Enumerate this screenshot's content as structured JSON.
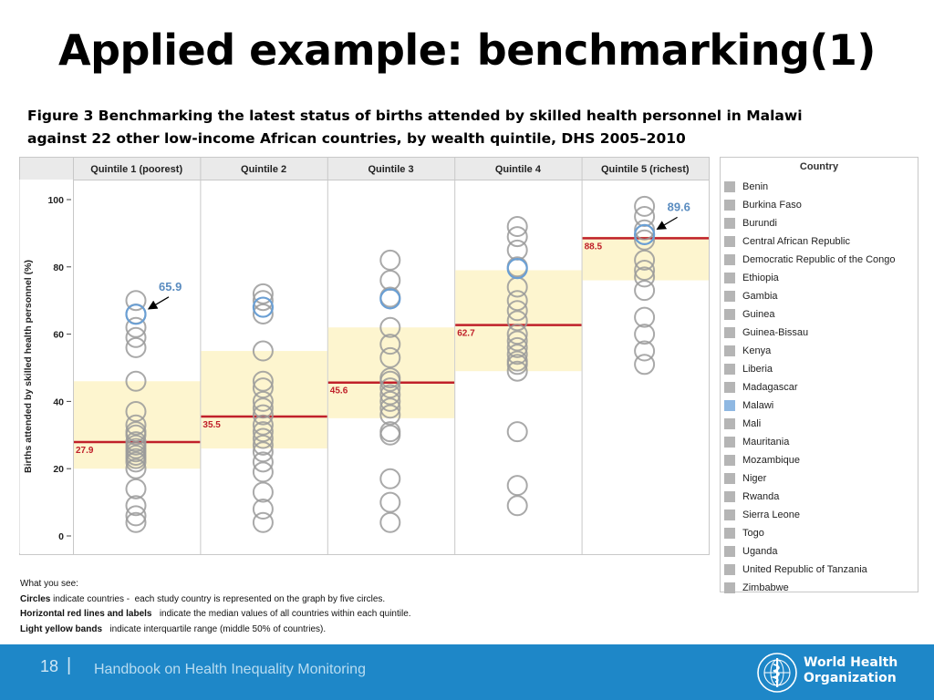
{
  "slide": {
    "title": "Applied example: benchmarking(1)",
    "caption_line1": "Figure 3 Benchmarking the latest status of births attended by skilled health personnel in Malawi",
    "caption_line2": "against 22 other low-income African countries, by wealth quintile, DHS 2005–2010"
  },
  "chart_data": {
    "type": "scatter",
    "ylabel": "Births attended by skilled health personnel (%)",
    "ylim": [
      0,
      100
    ],
    "yticks": [
      0,
      20,
      40,
      60,
      80,
      100
    ],
    "grid": false,
    "legend_position": "right",
    "highlight": "Malawi",
    "colors": {
      "circle": "#9a9a9a",
      "highlight": "#6a9fd4",
      "median": "#c0202a",
      "band": "#fdf5cf",
      "header_bg": "#eaeaea"
    },
    "panels": [
      {
        "name": "Quintile 1 (poorest)",
        "median": 27.9,
        "iqr": [
          20,
          46
        ],
        "malawi": 65.9,
        "values": [
          70,
          66,
          62,
          59,
          56,
          46,
          37,
          33,
          31,
          30,
          28,
          27,
          26,
          25,
          24,
          23,
          22,
          20,
          14,
          9,
          6,
          4
        ]
      },
      {
        "name": "Quintile 2",
        "median": 35.5,
        "iqr": [
          26,
          55
        ],
        "malawi": 68,
        "values": [
          72,
          70,
          66,
          55,
          46,
          44,
          40,
          38,
          36,
          33,
          31,
          29,
          27,
          25,
          22,
          19,
          13,
          8,
          4
        ]
      },
      {
        "name": "Quintile 3",
        "median": 45.6,
        "iqr": [
          35,
          62
        ],
        "malawi": 70.5,
        "values": [
          82,
          76,
          71,
          62,
          57,
          53,
          47,
          46,
          44,
          42,
          40,
          38,
          36,
          31,
          30,
          17,
          10,
          4
        ]
      },
      {
        "name": "Quintile 4",
        "median": 62.7,
        "iqr": [
          49,
          79
        ],
        "malawi": 79.5,
        "values": [
          92,
          89,
          85,
          80,
          74,
          70,
          67,
          64,
          60,
          58,
          56,
          54,
          52,
          51,
          49,
          31,
          15,
          9
        ]
      },
      {
        "name": "Quintile 5 (richest)",
        "median": 88.5,
        "iqr": [
          76,
          89
        ],
        "malawi": 89.6,
        "values": [
          98,
          95,
          91,
          88,
          82,
          79,
          77,
          73,
          65,
          60,
          55,
          51
        ]
      }
    ],
    "annotations": [
      {
        "panel": 0,
        "text": "65.9"
      },
      {
        "panel": 4,
        "text": "89.6"
      }
    ]
  },
  "legend": {
    "title": "Country",
    "items": [
      "Benin",
      "Burkina Faso",
      "Burundi",
      "Central African Republic",
      "Democratic Republic of the Congo",
      "Ethiopia",
      "Gambia",
      "Guinea",
      "Guinea-Bissau",
      "Kenya",
      "Liberia",
      "Madagascar",
      "Malawi",
      "Mali",
      "Mauritania",
      "Mozambique",
      "Niger",
      "Rwanda",
      "Sierra Leone",
      "Togo",
      "Uganda",
      "United Republic of Tanzania",
      "Zimbabwe"
    ],
    "colors": {
      "default": "#b5b5b5",
      "highlight": "#8fb8e2"
    }
  },
  "notes": {
    "heading": "What you see:",
    "circles_label": "Circles",
    "circles_text": " indicate countries -  each study country is represented on the graph by five circles.",
    "lines_label": "Horizontal red lines and labels",
    "lines_text": "   indicate the median values of all countries within each quintile.",
    "bands_label": "Light yellow bands",
    "bands_text": "   indicate interquartile range (middle 50% of countries)."
  },
  "footer": {
    "page_number": "18",
    "separator": "|",
    "text": "Handbook on Health Inequality Monitoring",
    "org_line1": "World Health",
    "org_line2": "Organization"
  }
}
